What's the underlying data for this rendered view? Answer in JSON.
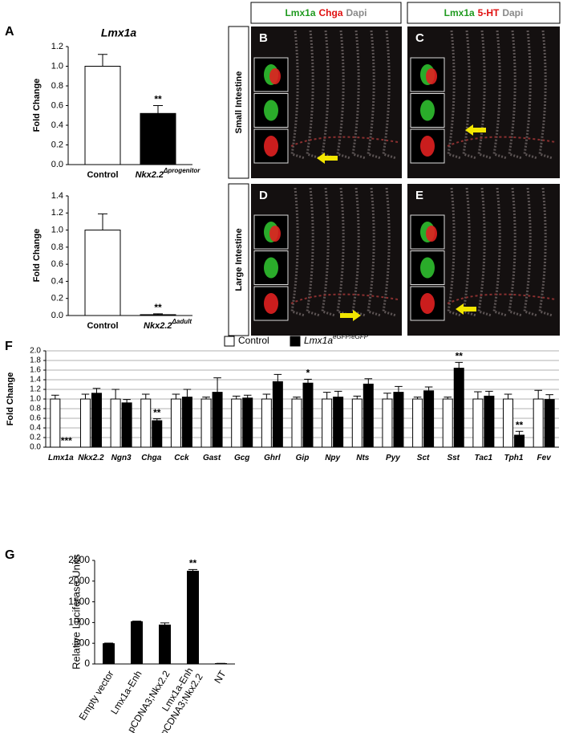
{
  "panel_labels": [
    "A",
    "F",
    "G"
  ],
  "micrographs": {
    "headers": [
      [
        "Lmx1a",
        "Chga",
        "Dapi"
      ],
      [
        "Lmx1a",
        "5-HT",
        "Dapi"
      ]
    ],
    "rows": [
      "Small Intestine",
      "Large Intestine"
    ],
    "panels": [
      "B",
      "C",
      "D",
      "E"
    ]
  },
  "chart_data": [
    {
      "type": "bar",
      "title": "Lmx1a",
      "y_label": "Fold Change",
      "categories": [
        "Control",
        "Nkx2.2"
      ],
      "category_superscripts": {
        "1": "Δprogenitor"
      },
      "values": [
        1.0,
        0.52
      ],
      "errors": [
        0.12,
        0.08
      ],
      "colors": [
        "#ffffff",
        "#000000"
      ],
      "value_annotations": {
        "1": "**"
      },
      "ylim": [
        0,
        1.2
      ],
      "yticks": [
        {
          "value": 0,
          "label": "0.0"
        },
        0.2,
        0.4,
        0.6,
        0.8,
        {
          "value": 1,
          "label": "1.0"
        },
        1.2
      ],
      "grid": false
    },
    {
      "type": "bar",
      "y_label": "Fold Change",
      "categories": [
        "Control",
        "Nkx2.2"
      ],
      "category_superscripts": {
        "1": "Δadult"
      },
      "values": [
        1.0,
        0.01
      ],
      "errors": [
        0.19,
        0.01
      ],
      "colors": [
        "#ffffff",
        "#000000"
      ],
      "value_annotations": {
        "1": "**"
      },
      "ylim": [
        0,
        1.4
      ],
      "yticks": [
        {
          "value": 0,
          "label": "0.0"
        },
        0.2,
        0.4,
        0.6,
        0.8,
        {
          "value": 1,
          "label": "1.0"
        },
        1.2,
        1.4
      ],
      "grid": false
    },
    {
      "type": "grouped_bar",
      "y_label": "Fold Change",
      "categories": [
        "Lmx1a",
        "Nkx2.2",
        "Ngn3",
        "Chga",
        "Cck",
        "Gast",
        "Gcg",
        "Ghrl",
        "Gip",
        "Npy",
        "Nts",
        "Pyy",
        "Sct",
        "Sst",
        "Tac1",
        "Tph1",
        "Fev"
      ],
      "series": [
        {
          "name": "Control",
          "color": "#ffffff",
          "values": [
            1.0,
            1.0,
            1.0,
            1.0,
            1.0,
            1.0,
            1.0,
            1.0,
            1.0,
            1.0,
            1.0,
            1.0,
            1.0,
            1.0,
            1.0,
            1.0,
            1.0
          ],
          "errors": [
            0.08,
            0.1,
            0.2,
            0.1,
            0.1,
            0.04,
            0.06,
            0.1,
            0.04,
            0.14,
            0.06,
            0.12,
            0.04,
            0.04,
            0.15,
            0.1,
            0.18
          ]
        },
        {
          "name": "Lmx1a",
          "name_superscript": "eGFP/eGFP",
          "color": "#000000",
          "values": [
            0,
            1.12,
            0.92,
            0.55,
            1.04,
            1.14,
            1.02,
            1.36,
            1.33,
            1.04,
            1.31,
            1.14,
            1.17,
            1.64,
            1.06,
            0.25,
            0.99
          ],
          "errors": [
            0,
            0.1,
            0.07,
            0.04,
            0.16,
            0.3,
            0.06,
            0.15,
            0.08,
            0.12,
            0.11,
            0.12,
            0.08,
            0.12,
            0.1,
            0.08,
            0.1
          ],
          "value_annotations": {
            "0": "***",
            "3": "**",
            "8": "*",
            "13": "**",
            "15": "**"
          }
        }
      ],
      "ylim": [
        0,
        2
      ],
      "yticks": [
        {
          "value": 0,
          "label": "0.0"
        },
        0.2,
        0.4,
        0.6,
        0.8,
        {
          "value": 1,
          "label": "1.0"
        },
        1.2,
        1.4,
        1.6,
        1.8,
        {
          "value": 2,
          "label": "2.0"
        }
      ],
      "grid": true
    },
    {
      "type": "bar",
      "y_label": "Relative  Luciferase Units",
      "categories": [
        "Empty vector",
        "Lmx1a-Enh",
        "pCDNA3;Nkx2.2",
        [
          "Lmx1a-Enh",
          "pCDNA3;Nkx2.2"
        ],
        "NT"
      ],
      "values": [
        490,
        1020,
        940,
        2240,
        10
      ],
      "errors": [
        15,
        15,
        50,
        40,
        5
      ],
      "color": "#000000",
      "value_annotations": {
        "3": "**"
      },
      "ylim": [
        0,
        2500
      ],
      "yticks": [
        0,
        500,
        1000,
        1500,
        2000,
        2500
      ],
      "grid": false
    }
  ]
}
